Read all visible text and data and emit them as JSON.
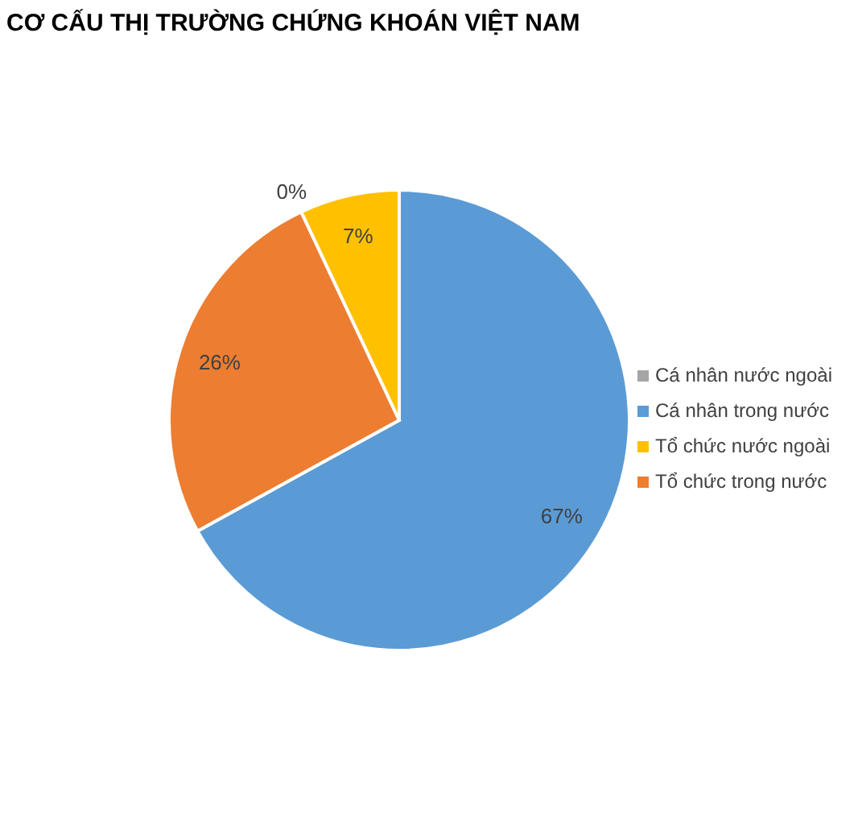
{
  "chart_data": {
    "type": "pie",
    "title": "CƠ CẤU THỊ TRƯỜNG CHỨNG KHOÁN VIỆT NAM",
    "categories": [
      "Cá nhân trong nước",
      "Tổ chức trong nước",
      "Cá nhân nước ngoài",
      "Tổ chức nước ngoài"
    ],
    "values": [
      67,
      26,
      0,
      7
    ],
    "colors": [
      "#5b9bd5",
      "#ed7d31",
      "#a5a5a5",
      "#ffc000"
    ],
    "value_labels": [
      "67%",
      "26%",
      "0%",
      "7%"
    ],
    "legend": "right"
  }
}
